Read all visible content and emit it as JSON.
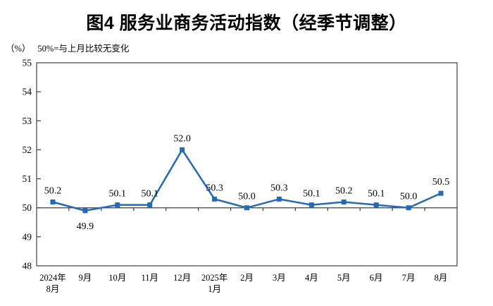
{
  "page": {
    "title": "图4 服务业商务活动指数（经季节调整）",
    "unit": "（%）",
    "note": "50%=与上月比较无变化"
  },
  "colors": {
    "line": "#1F6BBF",
    "marker": "#1F6BBF",
    "axis": "#3F3F3F",
    "text": "#000000",
    "background": "#FFFFFF"
  },
  "chart_data": {
    "type": "line",
    "title": "图4 服务业商务活动指数（经季节调整）",
    "ylabel": "（%）",
    "note": "50%=与上月比较无变化",
    "ylim": [
      48,
      55
    ],
    "ytick_step": 1,
    "baseline_value": 50,
    "grid": false,
    "legend": "none",
    "marker": "square",
    "categories": [
      "2024年8月",
      "9月",
      "10月",
      "11月",
      "12月",
      "2025年1月",
      "2月",
      "3月",
      "4月",
      "5月",
      "6月",
      "7月",
      "8月"
    ],
    "category_lines": [
      [
        "2024年",
        "8月"
      ],
      [
        "9月"
      ],
      [
        "10月"
      ],
      [
        "11月"
      ],
      [
        "12月"
      ],
      [
        "2025年",
        "1月"
      ],
      [
        "2月"
      ],
      [
        "3月"
      ],
      [
        "4月"
      ],
      [
        "5月"
      ],
      [
        "6月"
      ],
      [
        "7月"
      ],
      [
        "8月"
      ]
    ],
    "values": [
      50.2,
      49.9,
      50.1,
      50.1,
      52.0,
      50.3,
      50.0,
      50.3,
      50.1,
      50.2,
      50.1,
      50.0,
      50.5
    ],
    "data_labels": [
      "50.2",
      "49.9",
      "50.1",
      "50.1",
      "52.0",
      "50.3",
      "50.0",
      "50.3",
      "50.1",
      "50.2",
      "50.1",
      "50.0",
      "50.5"
    ]
  }
}
